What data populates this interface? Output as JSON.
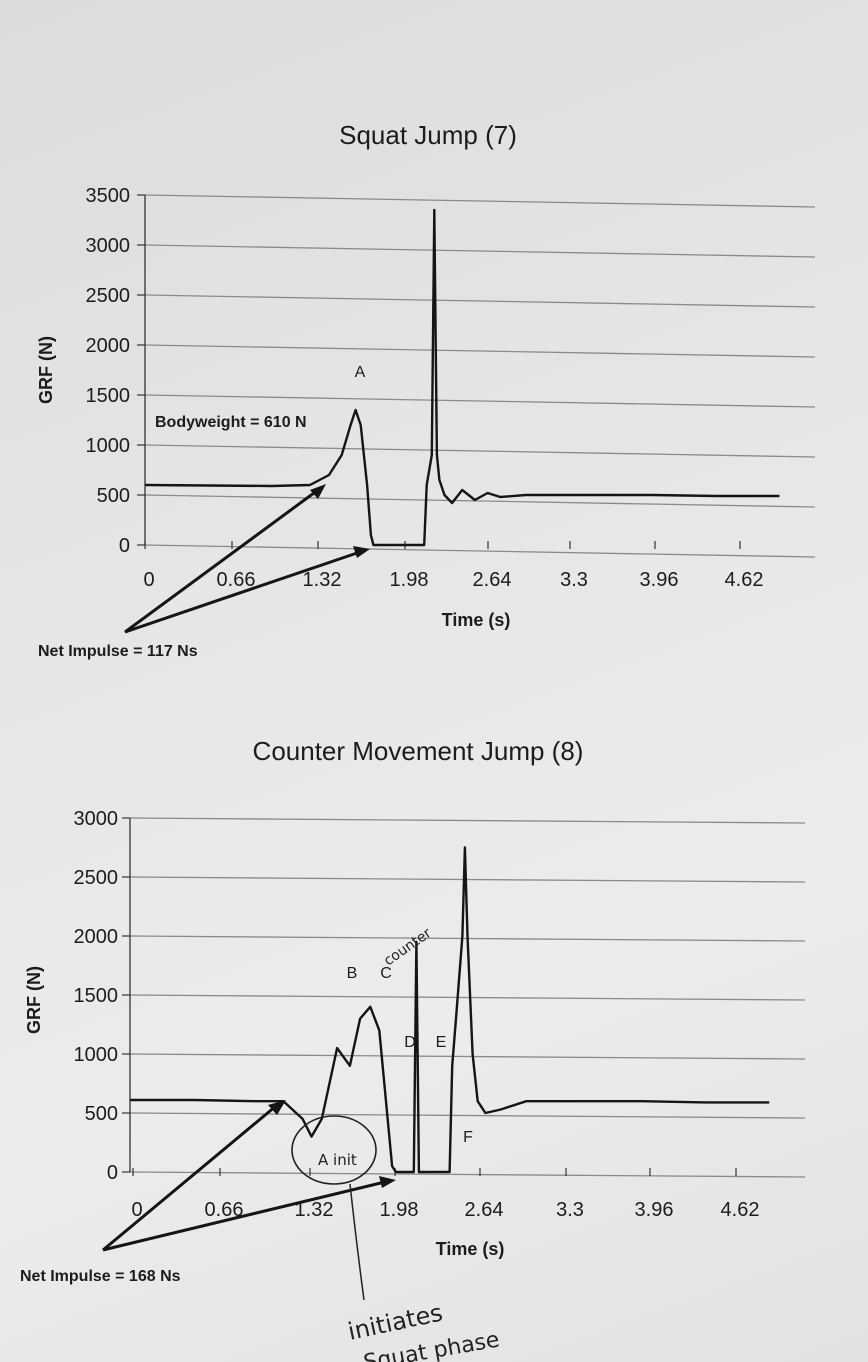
{
  "chart_data": [
    {
      "type": "line",
      "title": "Squat Jump (7)",
      "xlabel": "Time (s)",
      "ylabel": "GRF (N)",
      "x_ticks": [
        "0",
        "0.66",
        "1.32",
        "1.98",
        "2.64",
        "3.3",
        "3.96",
        "4.62"
      ],
      "y_ticks": [
        "3500",
        "3000",
        "2500",
        "2000",
        "1500",
        "1000",
        "500",
        "0"
      ],
      "xlim": [
        0,
        5.28
      ],
      "ylim": [
        0,
        3500
      ],
      "grid": "horizontal",
      "series": [
        {
          "x": [
            0,
            0.5,
            1.0,
            1.3,
            1.45,
            1.55,
            1.62,
            1.66,
            1.7,
            1.75,
            1.78,
            1.8,
            2.2,
            2.22,
            2.26,
            2.28,
            2.3,
            2.32,
            2.36,
            2.42,
            2.5,
            2.6,
            2.7,
            2.8,
            3.0,
            3.5,
            4.0,
            4.5,
            5.0
          ],
          "y": [
            600,
            595,
            590,
            600,
            700,
            900,
            1200,
            1350,
            1200,
            600,
            100,
            0,
            0,
            600,
            900,
            3350,
            900,
            650,
            500,
            420,
            550,
            450,
            520,
            480,
            500,
            500,
            500,
            490,
            490
          ]
        }
      ],
      "annotations": {
        "peak_label": "A",
        "bodyweight": "Bodyweight = 610 N",
        "impulse": "Net Impulse = 117 Ns"
      }
    },
    {
      "type": "line",
      "title": "Counter Movement Jump (8)",
      "xlabel": "Time (s)",
      "ylabel": "GRF (N)",
      "x_ticks": [
        "0",
        "0.66",
        "1.32",
        "1.98",
        "2.64",
        "3.3",
        "3.96",
        "4.62"
      ],
      "y_ticks": [
        "3000",
        "2500",
        "2000",
        "1500",
        "1000",
        "500",
        "0"
      ],
      "xlim": [
        0,
        5.28
      ],
      "ylim": [
        0,
        3000
      ],
      "grid": "horizontal",
      "series": [
        {
          "x": [
            0,
            0.5,
            1.0,
            1.2,
            1.35,
            1.42,
            1.5,
            1.62,
            1.72,
            1.8,
            1.88,
            1.95,
            2.05,
            2.08,
            2.22,
            2.24,
            2.26,
            2.3,
            2.5,
            2.52,
            2.55,
            2.6,
            2.62,
            2.64,
            2.68,
            2.72,
            2.78,
            2.9,
            3.1,
            3.5,
            4.0,
            4.5,
            5.0
          ],
          "y": [
            610,
            610,
            600,
            600,
            450,
            300,
            450,
            1050,
            900,
            1300,
            1400,
            1200,
            50,
            0,
            0,
            1950,
            0,
            0,
            0,
            900,
            1300,
            2000,
            2750,
            2000,
            1000,
            600,
            500,
            530,
            600,
            600,
            600,
            590,
            590
          ]
        }
      ],
      "annotations": {
        "markers": [
          "B",
          "C",
          "D",
          "E",
          "F"
        ],
        "impulse": "Net Impulse = 168 Ns"
      }
    }
  ],
  "handwriting": {
    "counter": "counter",
    "a_init": "A init",
    "initiates_line1": "initiates",
    "initiates_line2": "Squat phase"
  },
  "colors": {
    "line": "#151515",
    "grid": "#8a8a8a",
    "paper": "#e6e6e6"
  }
}
